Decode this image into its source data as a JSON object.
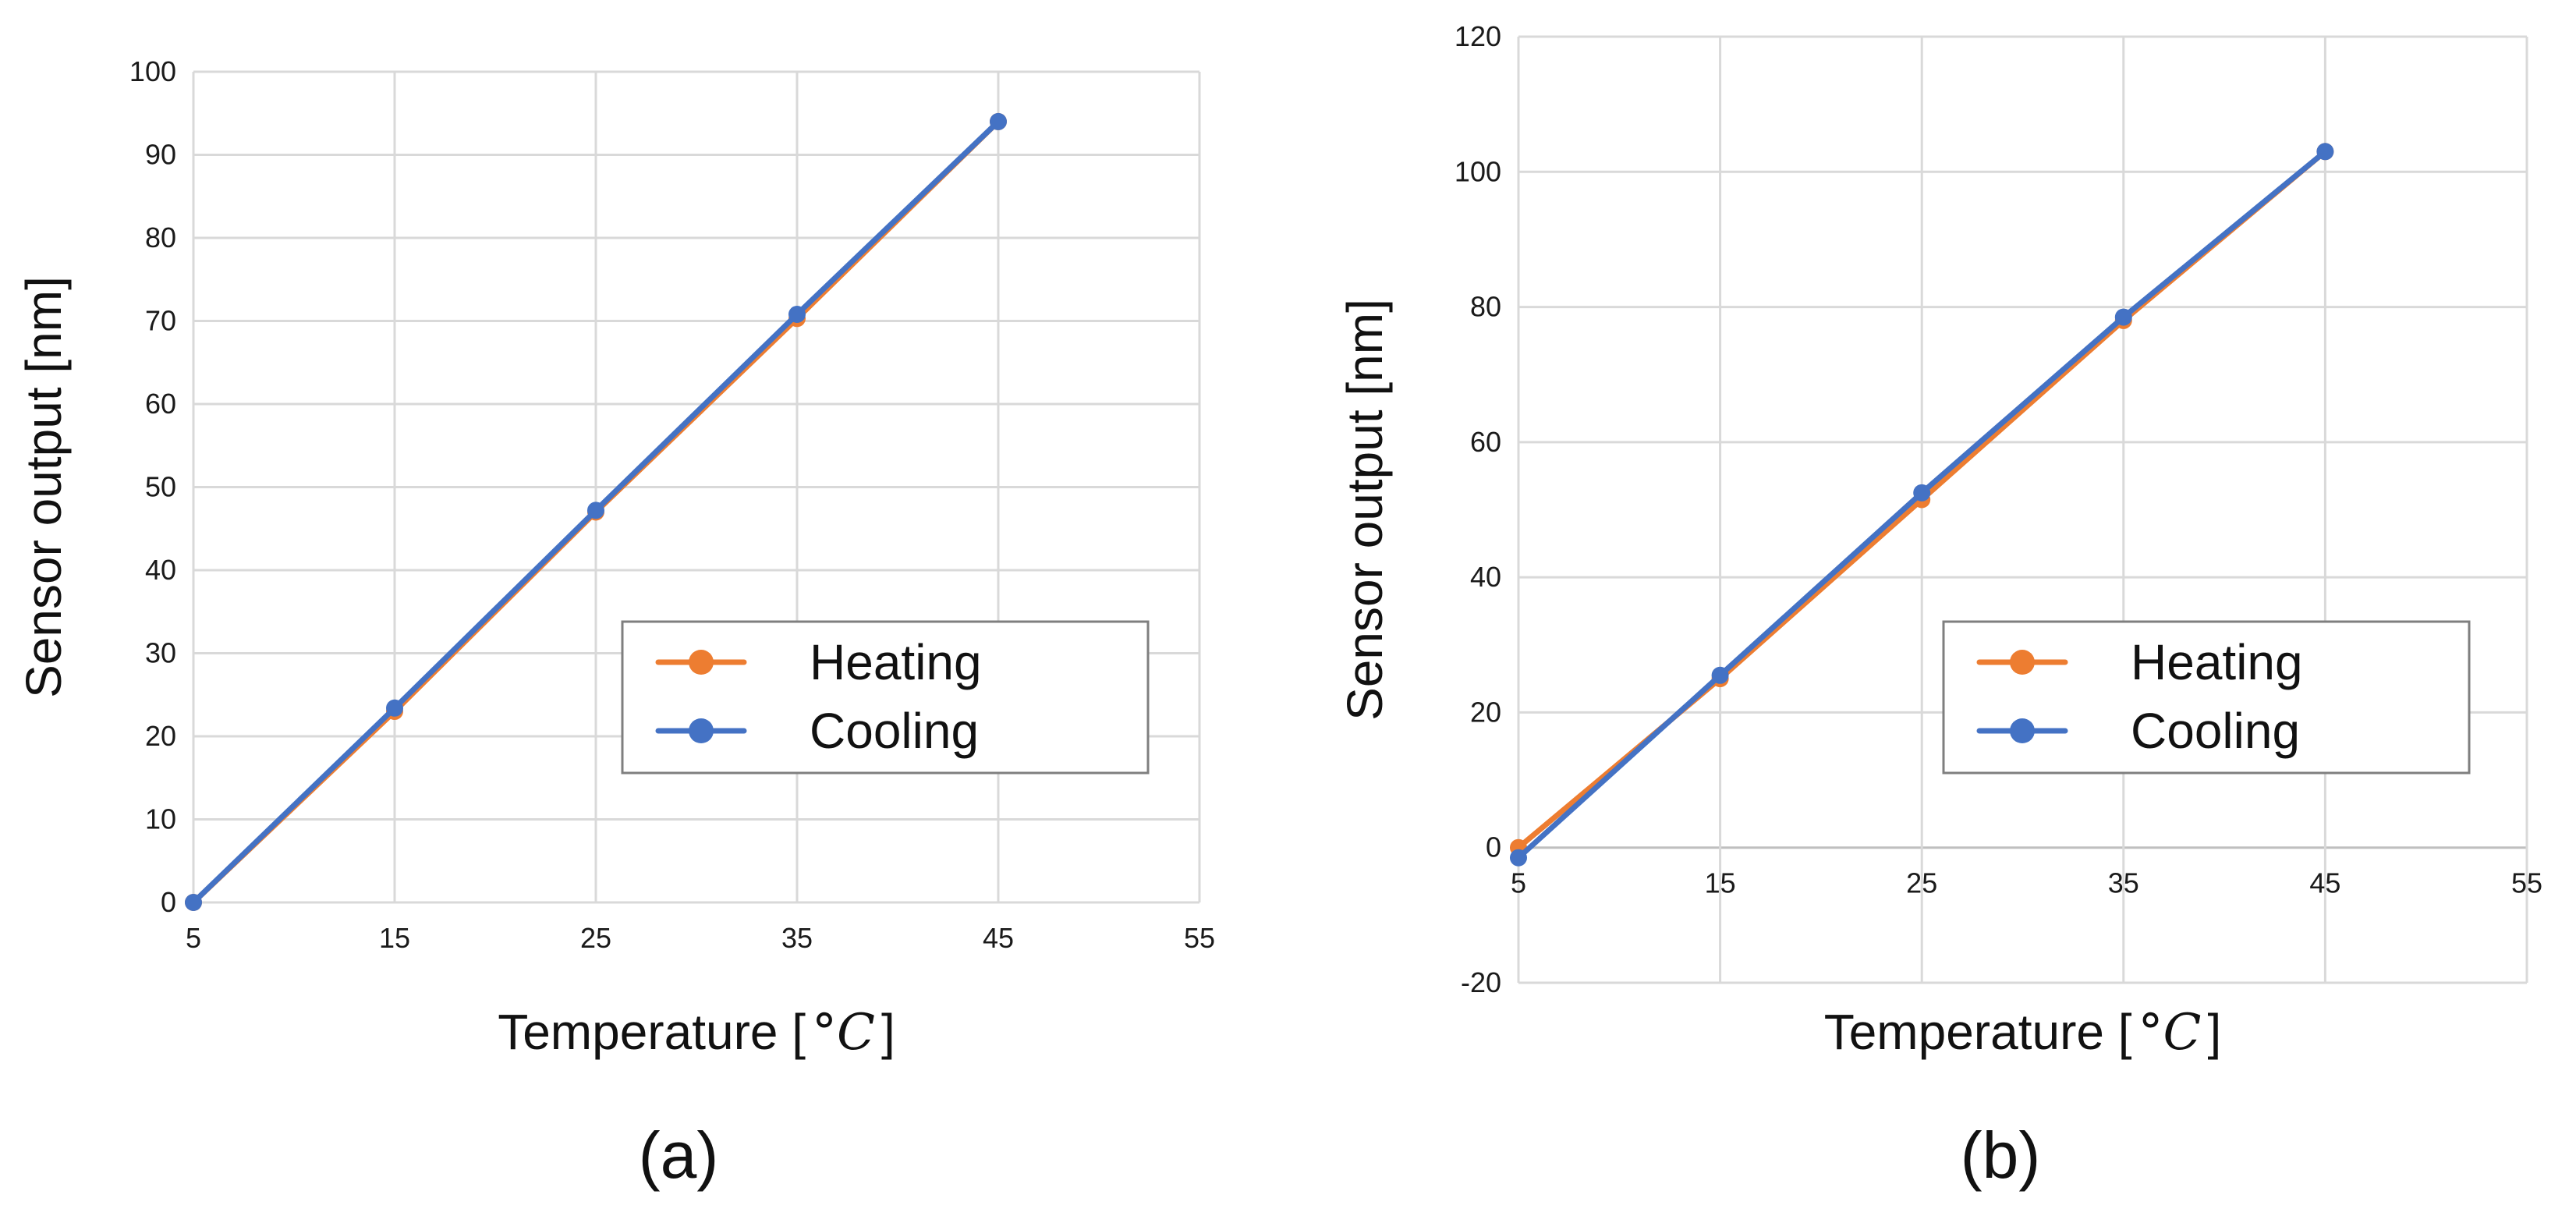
{
  "chart_data": [
    {
      "id": "a",
      "type": "line",
      "caption": "(a)",
      "xlabel": "Temperature [",
      "xlabel_unit": "°C",
      "xlabel_close": "]",
      "ylabel": "Sensor output [nm]",
      "xlim": [
        5,
        55
      ],
      "ylim": [
        0,
        100
      ],
      "x_ticks": [
        5,
        15,
        25,
        35,
        45,
        55
      ],
      "x_tick_labels": [
        "5",
        "15",
        "25",
        "35",
        "45",
        "55"
      ],
      "y_ticks": [
        0,
        10,
        20,
        30,
        40,
        50,
        60,
        70,
        80,
        90,
        100
      ],
      "y_tick_labels": [
        "0",
        "10",
        "20",
        "30",
        "40",
        "50",
        "60",
        "70",
        "80",
        "90",
        "100"
      ],
      "grid": true,
      "legend_position": "lower-right",
      "series": [
        {
          "name": "Heating",
          "color": "#ed7d31",
          "x": [
            5,
            15,
            25,
            35,
            45
          ],
          "y": [
            0,
            23,
            47,
            70.3,
            94
          ]
        },
        {
          "name": "Cooling",
          "color": "#4472c4",
          "x": [
            5,
            15,
            25,
            35,
            45
          ],
          "y": [
            0,
            23.4,
            47.2,
            70.8,
            94
          ]
        }
      ]
    },
    {
      "id": "b",
      "type": "line",
      "caption": "(b)",
      "xlabel": "Temperature [",
      "xlabel_unit": "°C",
      "xlabel_close": "]",
      "ylabel": "Sensor output [nm]",
      "xlim": [
        5,
        55
      ],
      "ylim": [
        -20,
        120
      ],
      "x_ticks": [
        5,
        15,
        25,
        35,
        45,
        55
      ],
      "x_tick_labels": [
        "5",
        "15",
        "25",
        "35",
        "45",
        "55"
      ],
      "y_ticks": [
        -20,
        0,
        20,
        40,
        60,
        80,
        100,
        120
      ],
      "y_tick_labels": [
        "-20",
        "0",
        "20",
        "40",
        "60",
        "80",
        "100",
        "120"
      ],
      "grid": true,
      "legend_position": "lower-right",
      "series": [
        {
          "name": "Heating",
          "color": "#ed7d31",
          "x": [
            5,
            15,
            25,
            35,
            45
          ],
          "y": [
            0,
            25,
            51.5,
            78,
            103
          ]
        },
        {
          "name": "Cooling",
          "color": "#4472c4",
          "x": [
            5,
            15,
            25,
            35,
            45
          ],
          "y": [
            -1.5,
            25.5,
            52.5,
            78.5,
            103
          ]
        }
      ]
    }
  ]
}
